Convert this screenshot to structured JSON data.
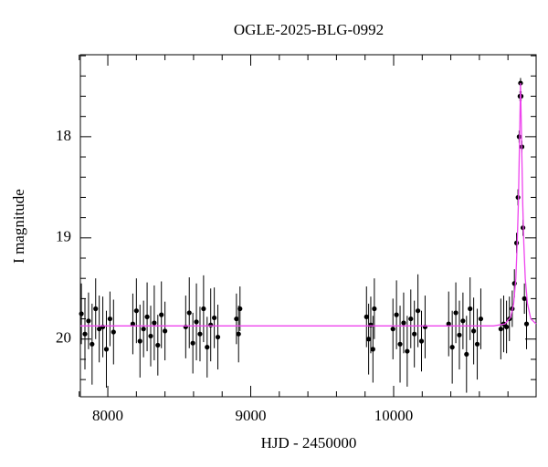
{
  "chart_data": {
    "type": "scatter",
    "title": "OGLE-2025-BLG-0992",
    "x_label": "HJD - 2450000",
    "y_label": "I magnitude",
    "xlim": [
      7808,
      10997
    ],
    "ylim": [
      20.57,
      17.19
    ],
    "xticks": [
      8000,
      9000,
      10000
    ],
    "yticks": [
      18,
      19,
      20
    ],
    "x_minor_ticks": [
      7800,
      8200,
      8400,
      8600,
      8800,
      9200,
      9400,
      9600,
      9800,
      10200,
      10400,
      10600,
      10800
    ],
    "y_minor_ticks": [
      17.2,
      17.4,
      17.6,
      17.8,
      18.2,
      18.4,
      18.6,
      18.8,
      19.2,
      19.4,
      19.6,
      19.8,
      20.2,
      20.4
    ],
    "points": {
      "color": "#000000",
      "x": [
        7815,
        7840,
        7865,
        7890,
        7915,
        7940,
        7965,
        7990,
        8015,
        8040,
        8175,
        8200,
        8225,
        8250,
        8275,
        8300,
        8325,
        8350,
        8375,
        8400,
        8545,
        8570,
        8595,
        8620,
        8645,
        8670,
        8695,
        8720,
        8745,
        8770,
        8900,
        8915,
        8925,
        9810,
        9825,
        9840,
        9855,
        9865,
        9995,
        10020,
        10045,
        10070,
        10095,
        10120,
        10145,
        10170,
        10195,
        10220,
        10385,
        10410,
        10435,
        10460,
        10485,
        10510,
        10535,
        10560,
        10585,
        10610,
        10750,
        10770,
        10790,
        10810,
        10830,
        10845,
        10860,
        10870,
        10878,
        10884,
        10888,
        10892,
        10898,
        10905,
        10915,
        10930
      ],
      "values": [
        19.75,
        19.95,
        19.82,
        20.05,
        19.7,
        19.9,
        19.88,
        20.1,
        19.8,
        19.93,
        19.85,
        19.72,
        20.02,
        19.9,
        19.78,
        19.97,
        19.84,
        20.06,
        19.76,
        19.92,
        19.88,
        19.74,
        20.04,
        19.83,
        19.95,
        19.7,
        20.08,
        19.86,
        19.79,
        19.98,
        19.8,
        19.95,
        19.7,
        19.78,
        20.0,
        19.86,
        20.1,
        19.7,
        19.9,
        19.76,
        20.05,
        19.84,
        20.12,
        19.8,
        19.95,
        19.72,
        20.02,
        19.88,
        19.85,
        20.08,
        19.74,
        19.96,
        19.82,
        20.15,
        19.7,
        19.92,
        20.05,
        19.8,
        19.9,
        19.85,
        19.88,
        19.8,
        19.7,
        19.45,
        19.05,
        18.6,
        18.0,
        17.6,
        17.47,
        17.6,
        18.1,
        18.9,
        19.6,
        19.85
      ],
      "errors": [
        0.3,
        0.35,
        0.28,
        0.4,
        0.3,
        0.33,
        0.3,
        0.38,
        0.27,
        0.32,
        0.3,
        0.32,
        0.36,
        0.28,
        0.34,
        0.3,
        0.37,
        0.3,
        0.33,
        0.29,
        0.31,
        0.35,
        0.3,
        0.38,
        0.27,
        0.33,
        0.3,
        0.36,
        0.3,
        0.32,
        0.25,
        0.28,
        0.22,
        0.3,
        0.35,
        0.28,
        0.33,
        0.3,
        0.3,
        0.34,
        0.38,
        0.3,
        0.35,
        0.29,
        0.33,
        0.36,
        0.3,
        0.31,
        0.32,
        0.36,
        0.3,
        0.34,
        0.28,
        0.38,
        0.31,
        0.33,
        0.35,
        0.3,
        0.3,
        0.28,
        0.26,
        0.22,
        0.18,
        0.14,
        0.1,
        0.08,
        0.06,
        0.05,
        0.05,
        0.05,
        0.06,
        0.08,
        0.15,
        0.25
      ]
    },
    "model": {
      "color": "#ee44ee",
      "x": [
        7808,
        10700,
        10780,
        10820,
        10840,
        10855,
        10865,
        10873,
        10880,
        10885,
        10888,
        10891,
        10896,
        10903,
        10911,
        10921,
        10936,
        10960,
        10997
      ],
      "values": [
        19.87,
        19.87,
        19.85,
        19.78,
        19.65,
        19.4,
        19.05,
        18.65,
        18.1,
        17.7,
        17.47,
        17.7,
        18.1,
        18.65,
        19.05,
        19.4,
        19.65,
        19.8,
        19.85
      ]
    }
  }
}
